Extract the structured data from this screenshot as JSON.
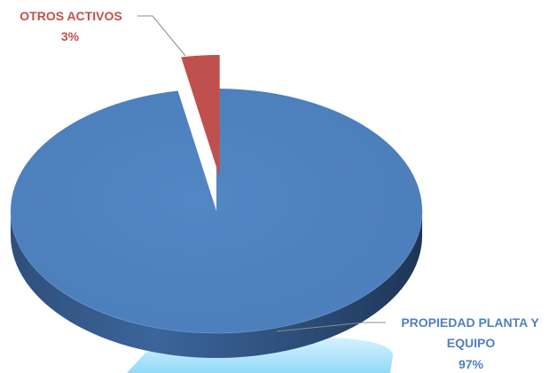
{
  "chart_data": {
    "type": "pie",
    "style": "3d-exploded",
    "title": "",
    "slices": [
      {
        "label_lines": [
          "PROPIEDAD PLANTA Y",
          "EQUIPO"
        ],
        "percent_text": "97%",
        "value": 97,
        "color": "#4F81BD",
        "label_color": "#4F81BD"
      },
      {
        "label_lines": [
          "OTROS ACTIVOS"
        ],
        "percent_text": "3%",
        "value": 3,
        "color": "#C0504D",
        "label_color": "#C0504D"
      }
    ]
  }
}
